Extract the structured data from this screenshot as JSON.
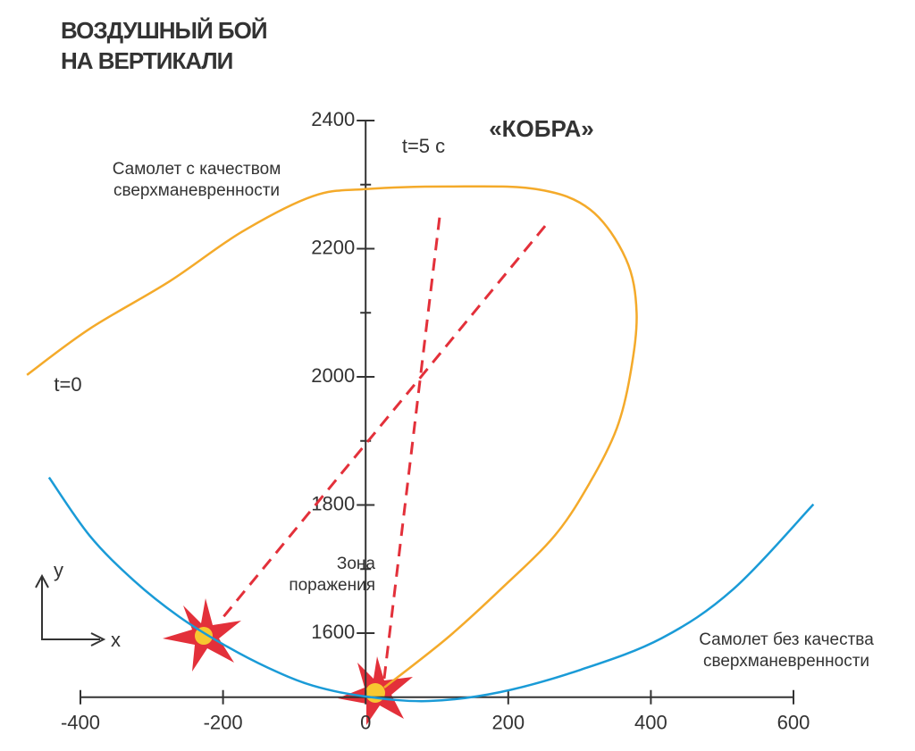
{
  "chart_data": {
    "type": "line",
    "title": "ВОЗДУШНЫЙ БОЙ НА ВЕРТИКАЛИ",
    "annotations": {
      "maneuver": "«КОБРА»",
      "t_end": "t=5 с",
      "t_start": "t=0",
      "zone": "Зона поражения",
      "y_axis": "y",
      "x_axis": "x"
    },
    "xlim": [
      -400,
      600
    ],
    "xticks": [
      -400,
      -200,
      0,
      200,
      400,
      600
    ],
    "ylim": [
      1500,
      2400
    ],
    "yticks": [
      1600,
      1800,
      2000,
      2200,
      2400
    ],
    "yminorticks": [
      1700,
      1900,
      2100,
      2300
    ],
    "series": [
      {
        "name": "Самолет с качеством сверхманевренности",
        "color": "#f4aa2a",
        "x": [
          -475,
          -387,
          -275,
          -174,
          -74,
          0,
          114,
          239,
          315,
          365,
          380,
          371,
          352,
          315,
          265,
          189,
          114,
          26
        ],
        "values": [
          2003,
          2075,
          2149,
          2226,
          2282,
          2293,
          2297,
          2293,
          2261,
          2184,
          2100,
          2003,
          1919,
          1836,
          1752,
          1668,
          1592,
          1515
        ]
      },
      {
        "name": "Самолет без качества сверхманевренности",
        "color": "#1a9bd7",
        "x": [
          -444,
          -387,
          -325,
          -262,
          -199,
          -137,
          -74,
          0,
          89,
          189,
          302,
          415,
          515,
          628
        ],
        "values": [
          1843,
          1752,
          1682,
          1626,
          1582,
          1546,
          1518,
          1501,
          1494,
          1508,
          1543,
          1592,
          1668,
          1801
        ]
      },
      {
        "color": "#e3303a",
        "dashed": true,
        "x": [
          -199,
          255
        ],
        "values": [
          1626,
          2240
        ]
      },
      {
        "color": "#e3303a",
        "dashed": true,
        "x": [
          26,
          105
        ],
        "values": [
          1529,
          2261
        ]
      }
    ]
  }
}
